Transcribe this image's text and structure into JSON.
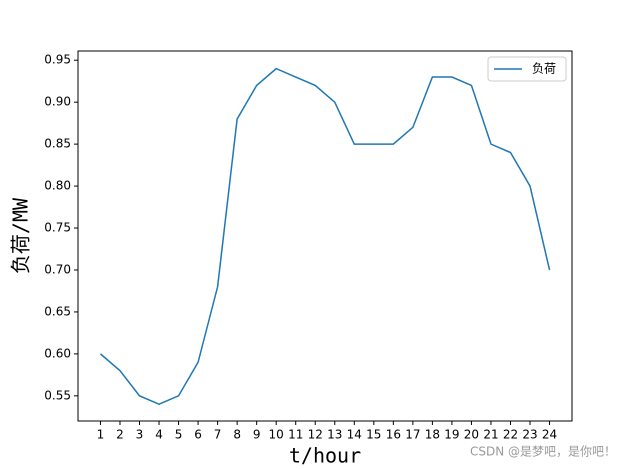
{
  "chart_data": {
    "type": "line",
    "x_label": "t/hour",
    "y_label": "负荷/MW",
    "x": [
      1,
      2,
      3,
      4,
      5,
      6,
      7,
      8,
      9,
      10,
      11,
      12,
      13,
      14,
      15,
      16,
      17,
      18,
      19,
      20,
      21,
      22,
      23,
      24
    ],
    "series": [
      {
        "name": "负荷",
        "color": "#1f77b4",
        "values": [
          0.6,
          0.58,
          0.55,
          0.54,
          0.55,
          0.59,
          0.68,
          0.88,
          0.92,
          0.94,
          0.93,
          0.92,
          0.9,
          0.85,
          0.85,
          0.85,
          0.87,
          0.93,
          0.93,
          0.92,
          0.85,
          0.84,
          0.8,
          0.7
        ]
      }
    ],
    "xlim": [
      -0.15,
      25.15
    ],
    "xticks": [
      1,
      2,
      3,
      4,
      5,
      6,
      7,
      8,
      9,
      10,
      11,
      12,
      13,
      14,
      15,
      16,
      17,
      18,
      19,
      20,
      21,
      22,
      23,
      24
    ],
    "ylim": [
      0.52,
      0.961
    ],
    "yticks": [
      0.55,
      {
        "value": 0.6,
        "label": "0.60"
      },
      0.65,
      {
        "value": 0.7,
        "label": "0.70"
      },
      0.75,
      {
        "value": 0.8,
        "label": "0.80"
      },
      0.85,
      {
        "value": 0.9,
        "label": "0.90"
      },
      0.95
    ],
    "legend": "upper right",
    "grid": false,
    "watermark": "CSDN @是梦吧，是你吧！"
  }
}
